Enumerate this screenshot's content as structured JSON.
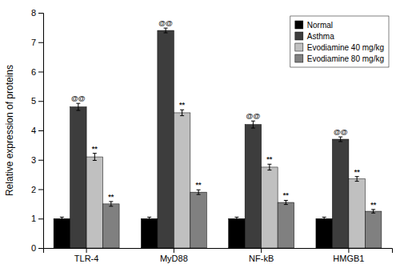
{
  "chart_data": {
    "type": "bar",
    "categories": [
      "TLR-4",
      "MyD88",
      "NF-kB",
      "HMGB1"
    ],
    "series": [
      {
        "name": "Normal",
        "color": "#000000",
        "values": [
          1.0,
          1.0,
          1.0,
          1.0
        ],
        "errors": [
          0.05,
          0.05,
          0.05,
          0.05
        ]
      },
      {
        "name": "Asthma",
        "color": "#3d3d3d",
        "values": [
          4.8,
          7.4,
          4.2,
          3.7
        ],
        "errors": [
          0.12,
          0.08,
          0.12,
          0.08
        ]
      },
      {
        "name": "Evodiamine 40 mg/kg",
        "color": "#c0c0c0",
        "values": [
          3.1,
          4.6,
          2.75,
          2.35
        ],
        "errors": [
          0.12,
          0.1,
          0.1,
          0.08
        ]
      },
      {
        "name": "Evodiamine 80 mg/kg",
        "color": "#808080",
        "values": [
          1.5,
          1.9,
          1.55,
          1.25
        ],
        "errors": [
          0.08,
          0.08,
          0.07,
          0.06
        ]
      }
    ],
    "ylabel": "Relative expression of proteins",
    "ylim": [
      0,
      8
    ],
    "yticks": [
      0,
      1,
      2,
      3,
      4,
      5,
      6,
      7,
      8
    ],
    "legend": "upper right",
    "annotations": [
      {
        "text": "@@",
        "category": "TLR-4",
        "series": "Asthma"
      },
      {
        "text": "@@",
        "category": "MyD88",
        "series": "Asthma"
      },
      {
        "text": "@@",
        "category": "NF-kB",
        "series": "Asthma"
      },
      {
        "text": "@@",
        "category": "HMGB1",
        "series": "Asthma"
      },
      {
        "text": "**",
        "category": "TLR-4",
        "series": "Evodiamine 40 mg/kg"
      },
      {
        "text": "**",
        "category": "MyD88",
        "series": "Evodiamine 40 mg/kg"
      },
      {
        "text": "**",
        "category": "NF-kB",
        "series": "Evodiamine 40 mg/kg"
      },
      {
        "text": "**",
        "category": "HMGB1",
        "series": "Evodiamine 40 mg/kg"
      },
      {
        "text": "**",
        "category": "TLR-4",
        "series": "Evodiamine 80 mg/kg"
      },
      {
        "text": "**",
        "category": "MyD88",
        "series": "Evodiamine 80 mg/kg"
      },
      {
        "text": "**",
        "category": "NF-kB",
        "series": "Evodiamine 80 mg/kg"
      },
      {
        "text": "**",
        "category": "HMGB1",
        "series": "Evodiamine 80 mg/kg"
      }
    ]
  }
}
